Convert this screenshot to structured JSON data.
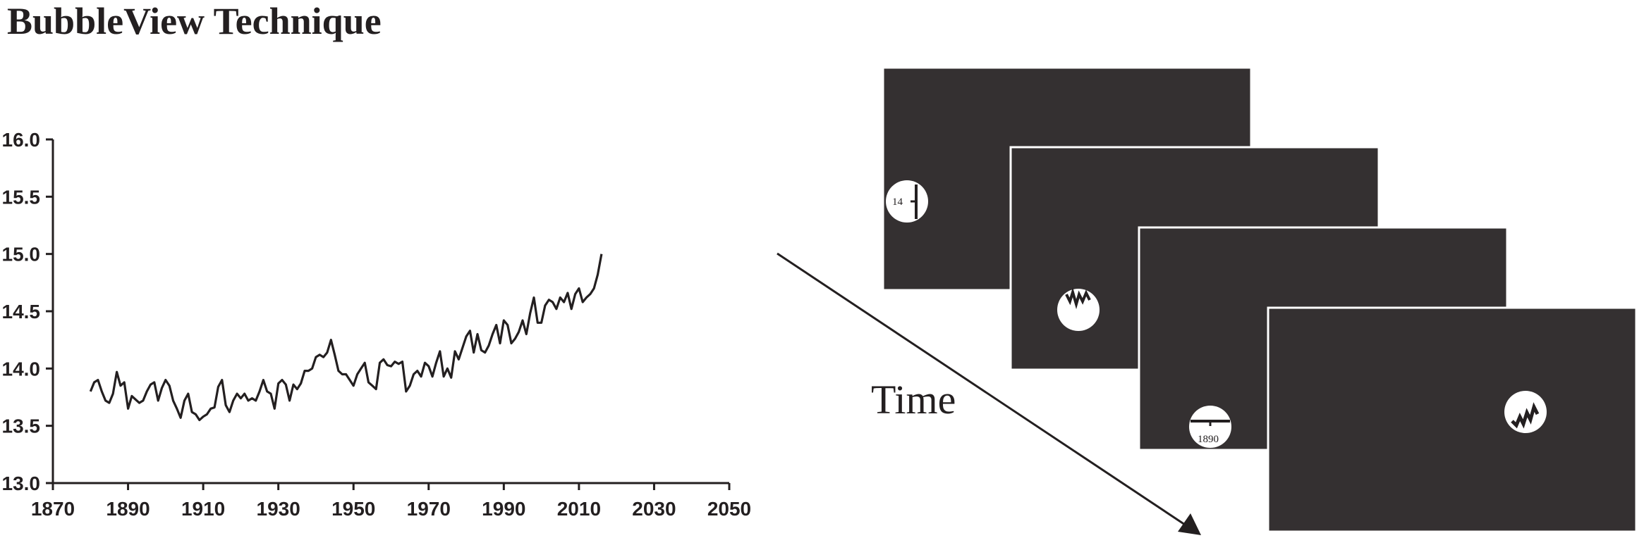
{
  "title": "BubbleView Technique",
  "colors": {
    "ink": "#231f20",
    "frame": "#343031",
    "bubble": "#ffffff"
  },
  "chart_data": {
    "type": "line",
    "title": "",
    "xlabel": "",
    "ylabel": "",
    "xlim": [
      1870,
      2050
    ],
    "ylim": [
      13.0,
      16.0
    ],
    "x_ticks": [
      "1870",
      "1890",
      "1910",
      "1930",
      "1950",
      "1970",
      "1990",
      "2010",
      "2030",
      "2050"
    ],
    "y_ticks": [
      "13.0",
      "13.5",
      "14.0",
      "14.5",
      "15.0",
      "15.5",
      "16.0"
    ],
    "grid": false,
    "series": [
      {
        "x": [
          1880,
          1881,
          1882,
          1883,
          1884,
          1885,
          1886,
          1887,
          1888,
          1889,
          1890,
          1891,
          1892,
          1893,
          1894,
          1895,
          1896,
          1897,
          1898,
          1899,
          1900,
          1901,
          1902,
          1903,
          1904,
          1905,
          1906,
          1907,
          1908,
          1909,
          1910,
          1911,
          1912,
          1913,
          1914,
          1915,
          1916,
          1917,
          1918,
          1919,
          1920,
          1921,
          1922,
          1923,
          1924,
          1925,
          1926,
          1927,
          1928,
          1929,
          1930,
          1931,
          1932,
          1933,
          1934,
          1935,
          1936,
          1937,
          1938,
          1939,
          1940,
          1941,
          1942,
          1943,
          1944,
          1945,
          1946,
          1947,
          1948,
          1949,
          1950,
          1951,
          1952,
          1953,
          1954,
          1955,
          1956,
          1957,
          1958,
          1959,
          1960,
          1961,
          1962,
          1963,
          1964,
          1965,
          1966,
          1967,
          1968,
          1969,
          1970,
          1971,
          1972,
          1973,
          1974,
          1975,
          1976,
          1977,
          1978,
          1979,
          1980,
          1981,
          1982,
          1983,
          1984,
          1985,
          1986,
          1987,
          1988,
          1989,
          1990,
          1991,
          1992,
          1993,
          1994,
          1995,
          1996,
          1997,
          1998,
          1999,
          2000,
          2001,
          2002,
          2003,
          2004,
          2005,
          2006,
          2007,
          2008,
          2009,
          2010,
          2011,
          2012,
          2013,
          2014,
          2015,
          2016
        ],
        "values": [
          13.8,
          13.88,
          13.9,
          13.8,
          13.72,
          13.7,
          13.78,
          13.97,
          13.85,
          13.88,
          13.65,
          13.76,
          13.73,
          13.7,
          13.72,
          13.8,
          13.86,
          13.88,
          13.72,
          13.83,
          13.9,
          13.85,
          13.72,
          13.65,
          13.57,
          13.72,
          13.78,
          13.62,
          13.6,
          13.55,
          13.58,
          13.6,
          13.65,
          13.66,
          13.84,
          13.9,
          13.68,
          13.62,
          13.72,
          13.78,
          13.74,
          13.78,
          13.72,
          13.74,
          13.72,
          13.8,
          13.9,
          13.8,
          13.78,
          13.65,
          13.87,
          13.9,
          13.86,
          13.72,
          13.86,
          13.82,
          13.87,
          13.98,
          13.98,
          14.0,
          14.1,
          14.12,
          14.1,
          14.14,
          14.25,
          14.12,
          13.98,
          13.95,
          13.95,
          13.9,
          13.85,
          13.95,
          14.0,
          14.05,
          13.88,
          13.85,
          13.82,
          14.05,
          14.08,
          14.03,
          14.02,
          14.06,
          14.04,
          14.06,
          13.8,
          13.85,
          13.95,
          13.98,
          13.93,
          14.05,
          14.02,
          13.93,
          14.05,
          14.15,
          13.93,
          14.0,
          13.92,
          14.15,
          14.08,
          14.18,
          14.28,
          14.33,
          14.14,
          14.3,
          14.16,
          14.14,
          14.2,
          14.3,
          14.38,
          14.22,
          14.42,
          14.38,
          14.22,
          14.26,
          14.32,
          14.42,
          14.3,
          14.48,
          14.62,
          14.4,
          14.4,
          14.55,
          14.6,
          14.58,
          14.52,
          14.62,
          14.58,
          14.66,
          14.52,
          14.65,
          14.7,
          14.58,
          14.62,
          14.65,
          14.7,
          14.82,
          15.0
        ]
      }
    ]
  },
  "illustration": {
    "time_label": "Time",
    "bubble_labels": [
      "14",
      "1890"
    ]
  }
}
